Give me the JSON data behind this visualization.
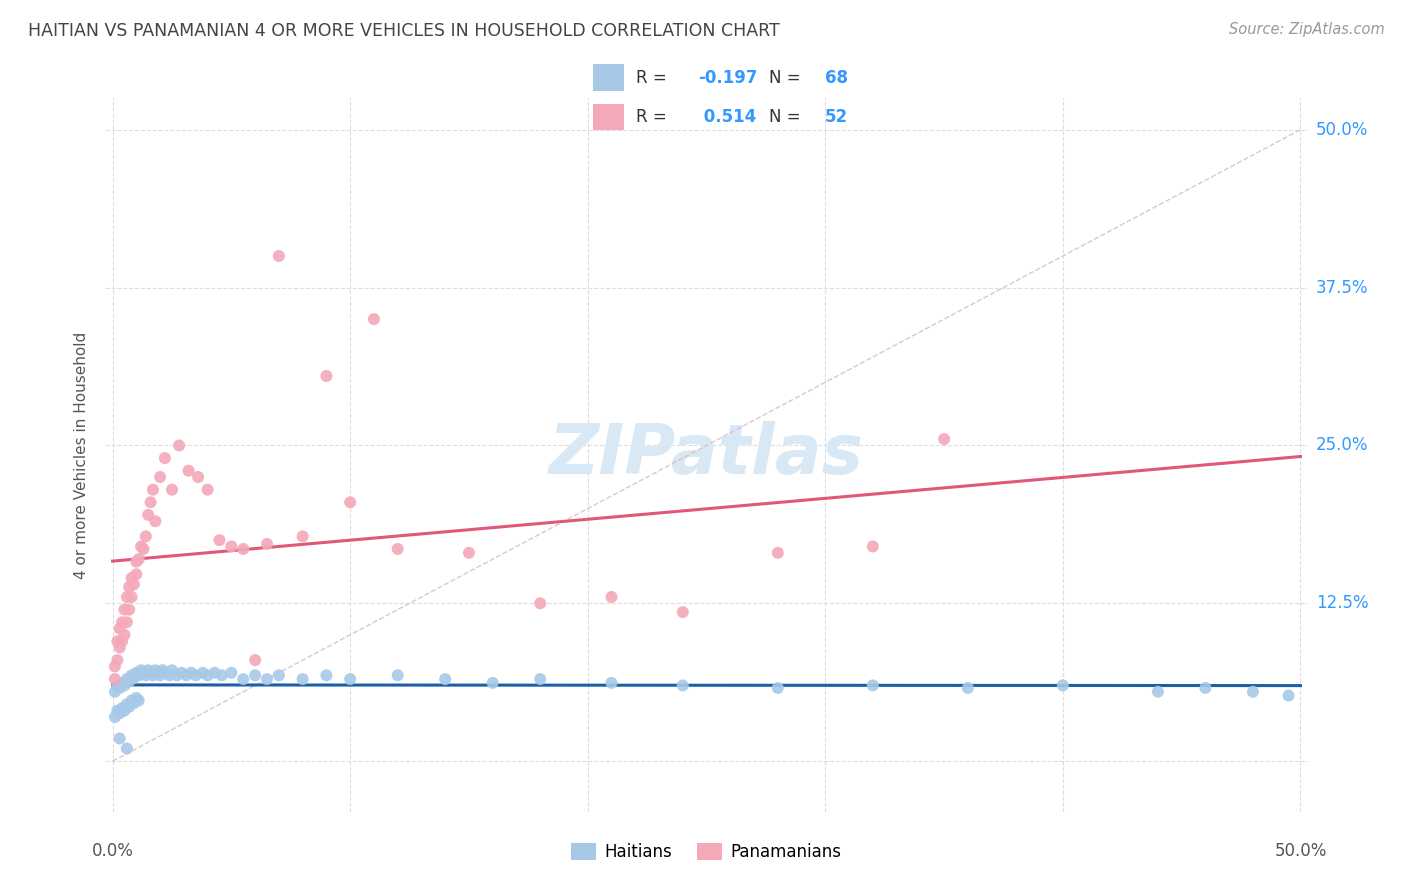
{
  "title": "HAITIAN VS PANAMANIAN 4 OR MORE VEHICLES IN HOUSEHOLD CORRELATION CHART",
  "source": "Source: ZipAtlas.com",
  "ylabel": "4 or more Vehicles in Household",
  "ytick_values": [
    0.0,
    0.125,
    0.25,
    0.375,
    0.5
  ],
  "ytick_labels": [
    "",
    "12.5%",
    "25.0%",
    "37.5%",
    "50.0%"
  ],
  "xlim": [
    -0.003,
    0.503
  ],
  "ylim": [
    -0.04,
    0.525
  ],
  "legend_blue_label": "Haitians",
  "legend_pink_label": "Panamanians",
  "R_blue": -0.197,
  "N_blue": 68,
  "R_pink": 0.514,
  "N_pink": 52,
  "blue_color": "#a8c8e8",
  "pink_color": "#f4a8b8",
  "line_blue_color": "#1a5fa8",
  "line_pink_color": "#e05878",
  "diag_color": "#d8c0c8",
  "watermark_color": "#d8e8f4",
  "annotation_color": "#3399ff",
  "title_color": "#444444",
  "source_color": "#999999",
  "background_color": "#ffffff",
  "grid_color": "#dddddd",
  "blue_scatter_x": [
    0.001,
    0.001,
    0.002,
    0.002,
    0.003,
    0.003,
    0.004,
    0.004,
    0.005,
    0.005,
    0.006,
    0.006,
    0.007,
    0.007,
    0.008,
    0.008,
    0.009,
    0.009,
    0.01,
    0.01,
    0.011,
    0.011,
    0.012,
    0.013,
    0.014,
    0.015,
    0.016,
    0.017,
    0.018,
    0.019,
    0.02,
    0.021,
    0.022,
    0.024,
    0.025,
    0.027,
    0.029,
    0.031,
    0.033,
    0.035,
    0.038,
    0.04,
    0.043,
    0.046,
    0.05,
    0.055,
    0.06,
    0.065,
    0.07,
    0.08,
    0.09,
    0.1,
    0.12,
    0.14,
    0.16,
    0.18,
    0.21,
    0.24,
    0.28,
    0.32,
    0.36,
    0.4,
    0.44,
    0.46,
    0.48,
    0.495,
    0.003,
    0.006
  ],
  "blue_scatter_y": [
    0.055,
    0.035,
    0.06,
    0.04,
    0.058,
    0.038,
    0.062,
    0.042,
    0.06,
    0.04,
    0.065,
    0.045,
    0.063,
    0.043,
    0.068,
    0.048,
    0.066,
    0.046,
    0.07,
    0.05,
    0.068,
    0.048,
    0.072,
    0.07,
    0.068,
    0.072,
    0.07,
    0.068,
    0.072,
    0.07,
    0.068,
    0.072,
    0.07,
    0.068,
    0.072,
    0.068,
    0.07,
    0.068,
    0.07,
    0.068,
    0.07,
    0.068,
    0.07,
    0.068,
    0.07,
    0.065,
    0.068,
    0.065,
    0.068,
    0.065,
    0.068,
    0.065,
    0.068,
    0.065,
    0.062,
    0.065,
    0.062,
    0.06,
    0.058,
    0.06,
    0.058,
    0.06,
    0.055,
    0.058,
    0.055,
    0.052,
    0.018,
    0.01
  ],
  "pink_scatter_x": [
    0.001,
    0.001,
    0.002,
    0.002,
    0.003,
    0.003,
    0.004,
    0.004,
    0.005,
    0.005,
    0.006,
    0.006,
    0.007,
    0.007,
    0.008,
    0.008,
    0.009,
    0.01,
    0.01,
    0.011,
    0.012,
    0.013,
    0.014,
    0.015,
    0.016,
    0.017,
    0.018,
    0.02,
    0.022,
    0.025,
    0.028,
    0.032,
    0.036,
    0.04,
    0.045,
    0.05,
    0.055,
    0.06,
    0.065,
    0.08,
    0.09,
    0.1,
    0.12,
    0.15,
    0.18,
    0.21,
    0.24,
    0.28,
    0.32,
    0.35,
    0.11,
    0.07
  ],
  "pink_scatter_y": [
    0.065,
    0.075,
    0.08,
    0.095,
    0.09,
    0.105,
    0.095,
    0.11,
    0.1,
    0.12,
    0.11,
    0.13,
    0.12,
    0.138,
    0.13,
    0.145,
    0.14,
    0.148,
    0.158,
    0.16,
    0.17,
    0.168,
    0.178,
    0.195,
    0.205,
    0.215,
    0.19,
    0.225,
    0.24,
    0.215,
    0.25,
    0.23,
    0.225,
    0.215,
    0.175,
    0.17,
    0.168,
    0.08,
    0.172,
    0.178,
    0.305,
    0.205,
    0.168,
    0.165,
    0.125,
    0.13,
    0.118,
    0.165,
    0.17,
    0.255,
    0.35,
    0.4
  ]
}
